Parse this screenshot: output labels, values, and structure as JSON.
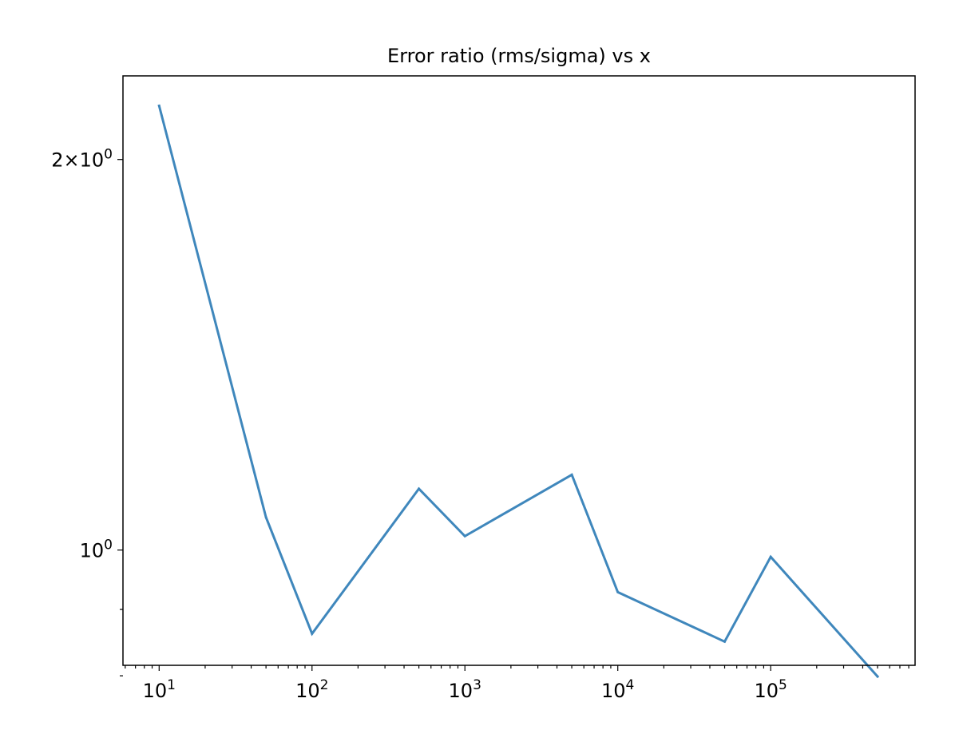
{
  "chart_data": {
    "type": "line",
    "title": "Error ratio (rms/sigma) vs x",
    "xlabel": "",
    "ylabel": "",
    "xscale": "log",
    "yscale": "log",
    "xlim": [
      5.8,
      880000
    ],
    "ylim": [
      0.815,
      2.32
    ],
    "grid": false,
    "legend": "none",
    "x_ticks": [
      {
        "value": 10,
        "base": "10",
        "exp": "1"
      },
      {
        "value": 100,
        "base": "10",
        "exp": "2"
      },
      {
        "value": 1000,
        "base": "10",
        "exp": "3"
      },
      {
        "value": 10000,
        "base": "10",
        "exp": "4"
      },
      {
        "value": 100000,
        "base": "10",
        "exp": "5"
      }
    ],
    "y_ticks": [
      {
        "value": 2,
        "mant": "2",
        "times": "×",
        "base": "10",
        "exp": "0"
      },
      {
        "value": 1,
        "mant": "",
        "times": "",
        "base": "10",
        "exp": "0"
      }
    ],
    "y_minor_ticks": [
      0.9,
      0.8
    ],
    "series": [
      {
        "name": "",
        "color": "#3f87bc",
        "x": [
          10,
          50,
          100,
          500,
          1000,
          5000,
          10000,
          50000,
          100000,
          500000
        ],
        "y": [
          2.2,
          1.06,
          0.862,
          1.115,
          1.025,
          1.143,
          0.928,
          0.85,
          0.988,
          0.799
        ]
      }
    ]
  }
}
